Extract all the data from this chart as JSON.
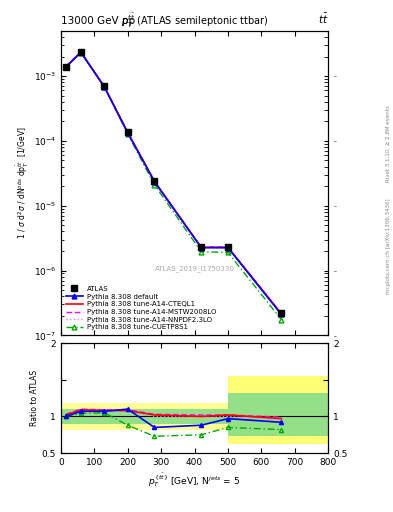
{
  "title_top": "13000 GeV pp",
  "title_top_right": "tt̅",
  "plot_title": "$p_T^{t\\bar{t}}$ (ATLAS semileptonic ttbar)",
  "xlabel": "$p^{\\{tbar{t}\\}}_T$ [GeV], N$^{jets}$ = 5",
  "ylabel_main": "1 / $\\sigma$ d$^2\\sigma$ / dN$^{obs}$ dp$^{\\bar{t}t}_{T}$ [1/GeV]",
  "ylabel_ratio": "Ratio to ATLAS",
  "watermark": "ATLAS_2019_I1750330",
  "right_label1": "Rivet 3.1.10, ≥ 2.8M events",
  "right_label2": "mcplots.cern.ch [arXiv:1306.3436]",
  "x_data": [
    15,
    60,
    130,
    200,
    280,
    420,
    500,
    660
  ],
  "atlas_y": [
    0.0014,
    0.00235,
    0.00069,
    0.000135,
    2.4e-05,
    2.3e-06,
    2.3e-06,
    2.2e-07
  ],
  "atlas_yerr": [
    8e-05,
    0.0001,
    3e-05,
    6e-06,
    1.5e-06,
    2e-07,
    2e-07,
    2e-08
  ],
  "pythia_default_y": [
    0.00138,
    0.00232,
    0.00068,
    0.000133,
    2.35e-05,
    2.25e-06,
    2.25e-06,
    2.1e-07
  ],
  "pythia_cteql1_y": [
    0.0014,
    0.00234,
    0.000685,
    0.000135,
    2.38e-05,
    2.28e-06,
    2.28e-06,
    2.15e-07
  ],
  "pythia_mstw_y": [
    0.00141,
    0.00235,
    0.000687,
    0.000136,
    2.39e-05,
    2.3e-06,
    2.3e-06,
    2.18e-07
  ],
  "pythia_nnpdf_y": [
    0.00139,
    0.00233,
    0.000682,
    0.000134,
    2.36e-05,
    2.26e-06,
    2.26e-06,
    2.12e-07
  ],
  "pythia_cuetp_y": [
    0.00137,
    0.00228,
    0.000675,
    0.000128,
    2.1e-05,
    1.95e-06,
    1.9e-06,
    1.75e-07
  ],
  "ratio_x": [
    15,
    60,
    130,
    200,
    280,
    420,
    500,
    660
  ],
  "ratio_default": [
    1.0,
    1.07,
    1.07,
    1.1,
    0.85,
    0.88,
    0.97,
    0.92
  ],
  "ratio_cteql1": [
    1.02,
    1.09,
    1.08,
    1.08,
    1.02,
    1.0,
    1.02,
    0.97
  ],
  "ratio_mstw": [
    1.03,
    1.1,
    1.09,
    1.09,
    1.03,
    1.02,
    1.02,
    0.99
  ],
  "ratio_nnpdf": [
    1.01,
    1.08,
    1.07,
    1.07,
    1.0,
    0.99,
    1.0,
    0.96
  ],
  "ratio_cuetp": [
    1.0,
    1.04,
    1.05,
    0.88,
    0.73,
    0.75,
    0.85,
    0.82
  ],
  "color_atlas": "#000000",
  "color_default": "#0000ff",
  "color_cteql1": "#ff0000",
  "color_mstw": "#ff00ff",
  "color_nnpdf": "#dd88ff",
  "color_cuetp": "#00aa00",
  "xlim": [
    0,
    800
  ],
  "ylim_main": [
    1e-07,
    0.005
  ],
  "ylim_ratio": [
    0.5,
    2.0
  ],
  "legend_labels": [
    "ATLAS",
    "Pythia 8.308 default",
    "Pythia 8.308 tune-A14-CTEQL1",
    "Pythia 8.308 tune-A14-MSTW2008LO",
    "Pythia 8.308 tune-A14-NNPDF2.3LO",
    "Pythia 8.308 tune-CUETP8S1"
  ]
}
